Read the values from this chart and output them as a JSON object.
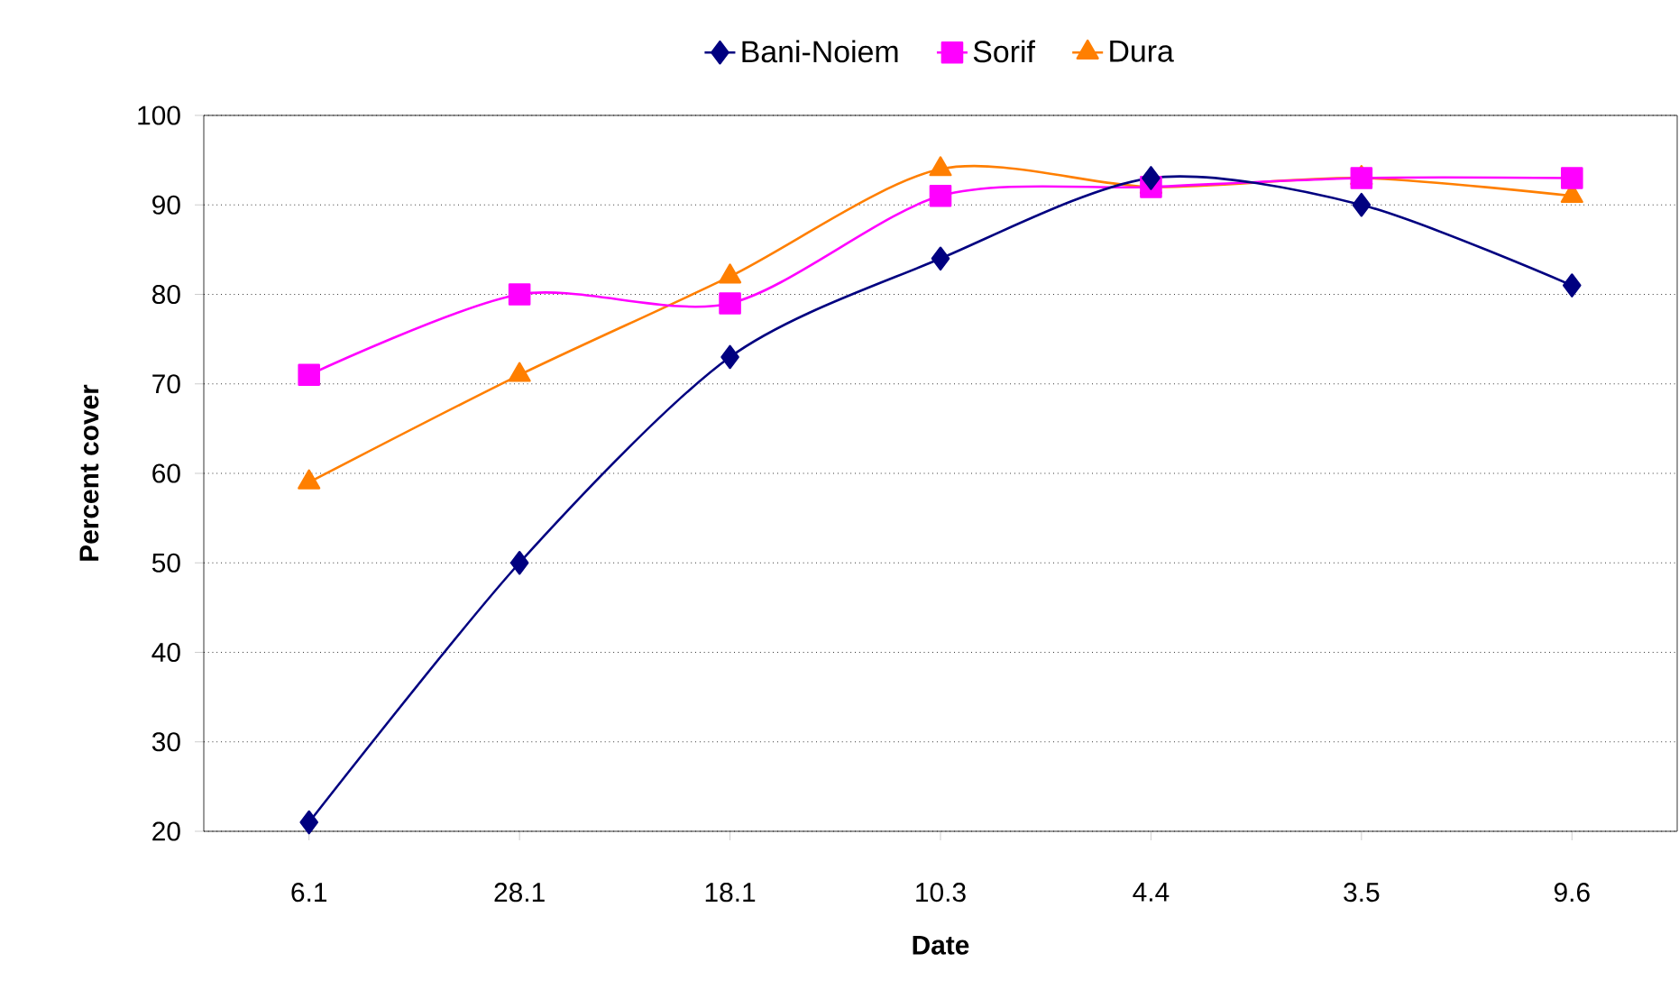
{
  "chart_data": {
    "type": "line",
    "xlabel": "Date",
    "ylabel": "Percent cover",
    "categories": [
      "6.1",
      "28.1",
      "18.1",
      "10.3",
      "4.4",
      "3.5",
      "9.6"
    ],
    "series": [
      {
        "name": "Bani-Noiem",
        "color": "#000080",
        "marker": "diamond",
        "values": [
          21,
          50,
          73,
          84,
          93,
          90,
          81
        ]
      },
      {
        "name": "Sorif",
        "color": "#ff00ff",
        "marker": "square",
        "values": [
          71,
          80,
          79,
          91,
          92,
          93,
          93
        ]
      },
      {
        "name": "Dura",
        "color": "#ff7f00",
        "marker": "triangle",
        "values": [
          59,
          71,
          82,
          94,
          92,
          93,
          91
        ]
      }
    ],
    "ylim": [
      20,
      100
    ],
    "yticks": [
      20,
      30,
      40,
      50,
      60,
      70,
      80,
      90,
      100
    ],
    "grid": "y",
    "legend": "top",
    "line_style": "solid"
  }
}
